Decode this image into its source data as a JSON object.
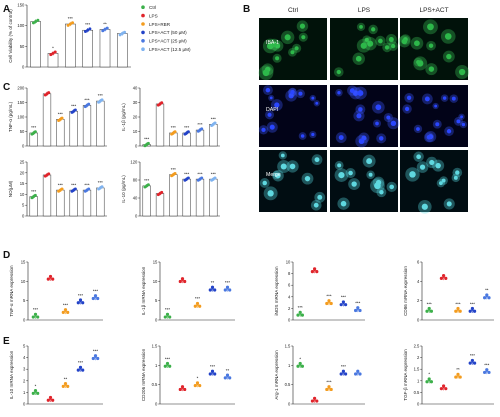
{
  "colors": {
    "Ctrl": "#3cb04a",
    "LPS": "#e0242b",
    "LPS+RBR": "#f39c1f",
    "LPS+ACT (50 μM)": "#2343c8",
    "LPS+ACT (25 μM)": "#4a78e0",
    "LPS+ACT (12.5 μM)": "#7fb3f0"
  },
  "groups": [
    "Ctrl",
    "LPS",
    "LPS+RBR",
    "LPS+ACT (50 μM)",
    "LPS+ACT (25 μM)",
    "LPS+ACT (12.5 μM)"
  ],
  "legend": {
    "placement": "right-of-panel-A",
    "entries": [
      "Ctrl",
      "LPS",
      "LPS+RBR",
      "LPS+ACT (50 μM)",
      "LPS+ACT (25 μM)",
      "LPS+ACT (12.5 μM)"
    ]
  },
  "panel_labels": [
    "A",
    "B",
    "C",
    "D",
    "E"
  ],
  "microscopy": {
    "columns": [
      "Ctrl",
      "LPS",
      "LPS+ACT"
    ],
    "rows": [
      "IBA-1",
      "DAPI",
      "Merge"
    ]
  },
  "chart_data": [
    {
      "id": "A",
      "type": "bar",
      "ylabel": "Cell Viability (% of control)",
      "ylim": [
        0,
        150
      ],
      "yticks": [
        0,
        50,
        100,
        150
      ],
      "values": [
        110,
        33,
        104,
        89,
        91,
        81
      ],
      "sig": [
        "",
        "*",
        "***",
        "***",
        "**",
        ""
      ]
    },
    {
      "id": "C1",
      "type": "bar",
      "ylabel": "TNF-α (pg/mL)",
      "ylim": [
        0,
        200
      ],
      "yticks": [
        0,
        50,
        100,
        150,
        200
      ],
      "values": [
        45,
        180,
        92,
        120,
        140,
        155
      ],
      "sig": [
        "***",
        "",
        "***",
        "***",
        "***",
        "***"
      ]
    },
    {
      "id": "C2",
      "type": "bar",
      "ylabel": "IL-1β (pg/mL)",
      "ylim": [
        0,
        40
      ],
      "yticks": [
        0,
        10,
        20,
        30,
        40
      ],
      "values": [
        1,
        29,
        9,
        9,
        11,
        15
      ],
      "sig": [
        "***",
        "",
        "***",
        "***",
        "***",
        "***"
      ]
    },
    {
      "id": "C3",
      "type": "bar",
      "ylabel": "NO(μM)",
      "ylim": [
        0,
        25
      ],
      "yticks": [
        0,
        5,
        10,
        15,
        20,
        25
      ],
      "values": [
        9,
        19,
        12,
        12,
        12,
        13
      ],
      "sig": [
        "***",
        "",
        "***",
        "***",
        "***",
        "***"
      ]
    },
    {
      "id": "C4",
      "type": "bar",
      "ylabel": "IL-10 (pg/mL)",
      "ylim": [
        0,
        120
      ],
      "yticks": [
        0,
        40,
        80,
        120
      ],
      "values": [
        67,
        50,
        92,
        82,
        82,
        82
      ],
      "sig": [
        "***",
        "",
        "***",
        "***",
        "***",
        "***"
      ]
    },
    {
      "id": "D1",
      "type": "scatter",
      "ylabel": "TNF-α mRNA expression",
      "ylim": [
        0,
        15
      ],
      "yticks": [
        0,
        5,
        10,
        15
      ],
      "values": [
        1.0,
        10.8,
        2.2,
        4.7,
        5.8
      ],
      "sig": [
        "***",
        "",
        "***",
        "***",
        "***"
      ]
    },
    {
      "id": "D2",
      "type": "scatter",
      "ylabel": "IL-1β mRNA expression",
      "ylim": [
        0,
        15
      ],
      "yticks": [
        0,
        5,
        10,
        15
      ],
      "values": [
        1.0,
        10.2,
        3.8,
        8.0,
        8.0
      ],
      "sig": [
        "***",
        "",
        "***",
        "**",
        "***"
      ]
    },
    {
      "id": "D3",
      "type": "scatter",
      "ylabel": "iNOS mRNA expression",
      "ylim": [
        0,
        10
      ],
      "yticks": [
        0,
        2,
        4,
        6,
        8,
        10
      ],
      "values": [
        1.0,
        8.5,
        3.0,
        2.8,
        1.8
      ],
      "sig": [
        "***",
        "",
        "***",
        "***",
        "***"
      ]
    },
    {
      "id": "D4",
      "type": "scatter",
      "ylabel": "CD86 mRNA expression",
      "ylim": [
        0,
        6
      ],
      "yticks": [
        0,
        2,
        4,
        6
      ],
      "values": [
        1.0,
        4.4,
        1.0,
        1.0,
        2.4
      ],
      "sig": [
        "***",
        "",
        "***",
        "***",
        "**"
      ]
    },
    {
      "id": "E1",
      "type": "scatter",
      "ylabel": "IL-10 mRNA expression",
      "ylim": [
        0,
        5
      ],
      "yticks": [
        0,
        1,
        2,
        3,
        4,
        5
      ],
      "values": [
        1.0,
        0.4,
        1.6,
        3.0,
        4.0
      ],
      "sig": [
        "*",
        "",
        "**",
        "***",
        "***"
      ]
    },
    {
      "id": "E2",
      "type": "scatter",
      "ylabel": "CD206 mRNA expression",
      "ylim": [
        0,
        1.5
      ],
      "yticks": [
        0,
        0.5,
        1.0,
        1.5
      ],
      "values": [
        1.0,
        0.4,
        0.5,
        0.8,
        0.7
      ],
      "sig": [
        "***",
        "",
        "*",
        "***",
        "**"
      ]
    },
    {
      "id": "E3",
      "type": "scatter",
      "ylabel": "Arg-1 mRNA expression",
      "ylim": [
        0,
        1.5
      ],
      "yticks": [
        0,
        0.5,
        1.0,
        1.5
      ],
      "values": [
        1.0,
        0.1,
        0.4,
        0.8,
        0.8
      ],
      "sig": [
        "*",
        "",
        "***",
        "***",
        ""
      ]
    },
    {
      "id": "E4",
      "type": "scatter",
      "ylabel": "TGF-β mRNA expression",
      "ylim": [
        0,
        2.5
      ],
      "yticks": [
        0,
        0.5,
        1.0,
        1.5,
        2.0,
        2.5
      ],
      "values": [
        1.0,
        0.7,
        1.2,
        1.8,
        1.4
      ],
      "sig": [
        "*",
        "",
        "**",
        "***",
        "***"
      ]
    }
  ]
}
